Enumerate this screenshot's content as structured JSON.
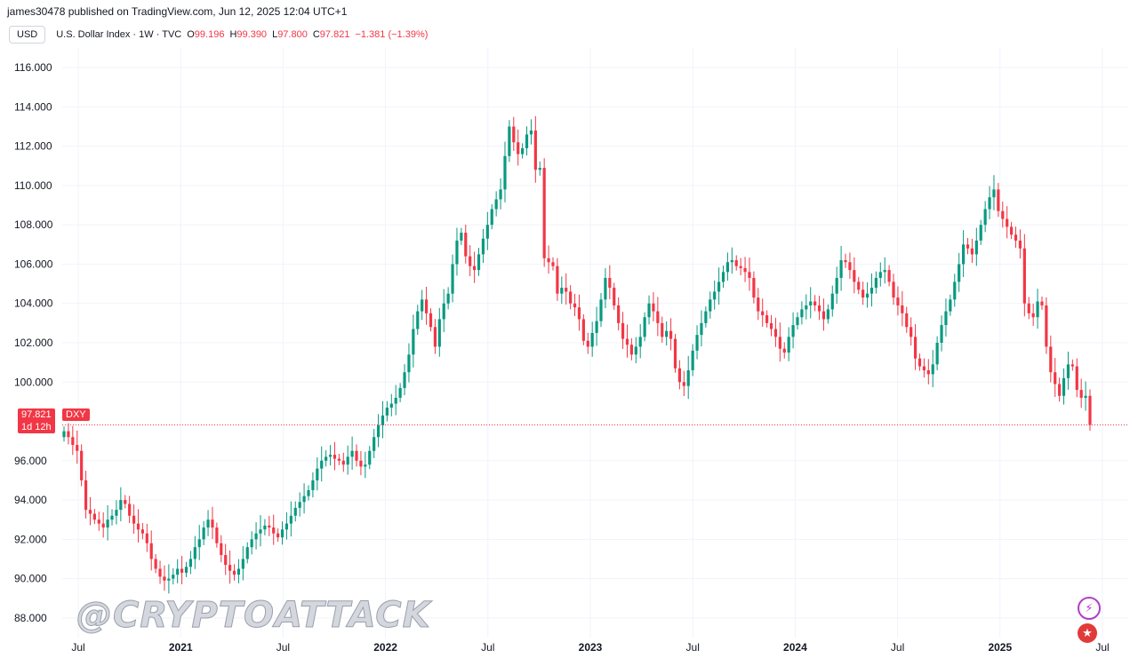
{
  "publisher_line": "james30478 published on TradingView.com, Jun 12, 2025 12:04 UTC+1",
  "header": {
    "symbol_button": "USD",
    "title": "U.S. Dollar Index · 1W · TVC",
    "open_key": "O",
    "open": "99.196",
    "high_key": "H",
    "high": "99.390",
    "low_key": "L",
    "low": "97.800",
    "close_key": "C",
    "close": "97.821",
    "change": "−1.381 (−1.39%)"
  },
  "price_label": {
    "price": "97.821",
    "countdown": "1d 12h",
    "ticker": "DXY"
  },
  "watermark": "@CRYPTOATTACK",
  "colors": {
    "up": "#089981",
    "down": "#f23645",
    "grid": "#f0f3fa",
    "text": "#131722"
  },
  "icons": [
    "lightning-icon",
    "us-flag-icon"
  ],
  "chart_data": {
    "type": "candlestick",
    "y_ticks": [
      "116.000",
      "114.000",
      "112.000",
      "110.000",
      "108.000",
      "106.000",
      "104.000",
      "102.000",
      "100.000",
      "96.000",
      "94.000",
      "92.000",
      "90.000",
      "88.000"
    ],
    "y_range": [
      87.0,
      117.0
    ],
    "x_ticks": [
      "Jul",
      "2021",
      "Jul",
      "2022",
      "Jul",
      "2023",
      "Jul",
      "2024",
      "Jul",
      "2025",
      "Jul"
    ],
    "grid": true,
    "last_price": 97.821,
    "close_series": [
      97.5,
      97.2,
      96.8,
      96.5,
      95.0,
      93.5,
      93.3,
      93.0,
      92.8,
      92.6,
      93.0,
      93.2,
      93.5,
      94.0,
      93.8,
      93.2,
      92.8,
      92.5,
      92.3,
      91.8,
      91.0,
      90.5,
      90.1,
      89.9,
      90.0,
      90.2,
      90.5,
      90.3,
      90.6,
      91.0,
      91.6,
      92.0,
      92.6,
      93.0,
      92.6,
      91.8,
      91.2,
      90.7,
      90.4,
      90.2,
      90.5,
      91.0,
      91.6,
      92.0,
      92.3,
      92.5,
      92.7,
      92.6,
      92.3,
      92.1,
      92.5,
      92.8,
      93.2,
      93.6,
      93.9,
      94.2,
      94.5,
      95.0,
      95.6,
      96.0,
      96.2,
      96.3,
      96.1,
      96.0,
      95.8,
      96.2,
      96.5,
      96.0,
      95.7,
      95.8,
      96.5,
      97.2,
      97.8,
      98.3,
      98.7,
      98.9,
      99.2,
      99.7,
      100.5,
      101.4,
      102.7,
      103.6,
      104.2,
      103.5,
      102.8,
      101.8,
      103.2,
      104.0,
      104.5,
      106.0,
      107.2,
      107.6,
      106.4,
      105.9,
      105.7,
      106.5,
      107.3,
      108.0,
      108.8,
      109.3,
      109.8,
      111.5,
      113.0,
      112.2,
      111.6,
      111.9,
      112.6,
      112.8,
      110.8,
      110.9,
      106.3,
      106.1,
      105.9,
      104.5,
      104.8,
      104.6,
      104.0,
      103.8,
      103.2,
      102.1,
      101.8,
      102.5,
      103.1,
      104.2,
      105.3,
      104.8,
      103.9,
      103.0,
      102.2,
      101.9,
      101.4,
      101.8,
      102.3,
      103.3,
      104.0,
      103.6,
      103.0,
      102.3,
      102.6,
      102.2,
      100.7,
      100.0,
      99.8,
      100.6,
      101.6,
      102.4,
      103.0,
      103.6,
      104.2,
      104.6,
      105.1,
      105.6,
      106.1,
      106.2,
      105.9,
      105.8,
      105.6,
      105.3,
      104.3,
      103.6,
      103.4,
      103.0,
      102.7,
      102.3,
      101.7,
      101.5,
      102.3,
      102.9,
      103.3,
      103.7,
      103.9,
      104.1,
      103.9,
      103.6,
      103.2,
      103.7,
      104.5,
      105.3,
      106.2,
      106.1,
      105.7,
      105.1,
      104.7,
      104.3,
      104.5,
      104.8,
      105.3,
      105.6,
      105.7,
      105.1,
      104.3,
      103.9,
      103.5,
      102.8,
      102.3,
      101.2,
      100.8,
      100.6,
      100.4,
      100.9,
      102.0,
      102.9,
      103.6,
      104.2,
      105.1,
      106.0,
      107.0,
      106.8,
      106.5,
      107.2,
      108.0,
      108.8,
      109.4,
      109.8,
      108.7,
      108.3,
      107.9,
      107.5,
      107.2,
      106.8,
      104.0,
      103.5,
      103.3,
      104.1,
      103.9,
      101.8,
      100.5,
      99.9,
      99.3,
      100.2,
      100.9,
      100.8,
      99.6,
      99.2,
      99.3,
      97.82
    ]
  }
}
